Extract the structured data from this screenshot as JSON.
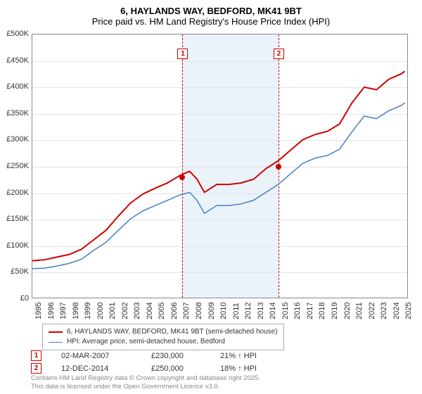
{
  "title": {
    "line1": "6, HAYLANDS WAY, BEDFORD, MK41 9BT",
    "line2": "Price paid vs. HM Land Registry's House Price Index (HPI)"
  },
  "chart": {
    "type": "line",
    "background_color": "#ffffff",
    "grid_color": "#e5e5e5",
    "border_color": "#888888",
    "xlim": [
      1995,
      2025.5
    ],
    "ylim": [
      0,
      500000
    ],
    "y_ticks": [
      0,
      50000,
      100000,
      150000,
      200000,
      250000,
      300000,
      350000,
      400000,
      450000,
      500000
    ],
    "y_tick_labels": [
      "£0",
      "£50K",
      "£100K",
      "£150K",
      "£200K",
      "£250K",
      "£300K",
      "£350K",
      "£400K",
      "£450K",
      "£500K"
    ],
    "x_ticks": [
      1995,
      1996,
      1997,
      1998,
      1999,
      2000,
      2001,
      2002,
      2003,
      2004,
      2005,
      2006,
      2007,
      2008,
      2009,
      2010,
      2011,
      2012,
      2013,
      2014,
      2015,
      2016,
      2017,
      2018,
      2019,
      2020,
      2021,
      2022,
      2023,
      2024,
      2025
    ],
    "shaded_band": {
      "x_from": 2007.17,
      "x_to": 2014.95,
      "color": "#eaf2fa"
    },
    "series": [
      {
        "name": "6, HAYLANDS WAY, BEDFORD, MK41 9BT (semi-detached house)",
        "color": "#cc0000",
        "line_width": 2,
        "x": [
          1995,
          1996,
          1997,
          1998,
          1999,
          2000,
          2001,
          2002,
          2003,
          2004,
          2005,
          2006,
          2007,
          2007.8,
          2008.4,
          2009,
          2010,
          2011,
          2012,
          2013,
          2014,
          2015,
          2016,
          2017,
          2018,
          2019,
          2020,
          2021,
          2022,
          2023,
          2024,
          2025,
          2025.3
        ],
        "y": [
          70000,
          72000,
          77000,
          82000,
          92000,
          110000,
          128000,
          155000,
          180000,
          197000,
          208000,
          218000,
          232000,
          240000,
          225000,
          200000,
          215000,
          215000,
          218000,
          225000,
          245000,
          260000,
          280000,
          300000,
          310000,
          316000,
          330000,
          370000,
          400000,
          395000,
          415000,
          425000,
          430000
        ]
      },
      {
        "name": "HPI: Average price, semi-detached house, Bedford",
        "color": "#4a7fc1",
        "line_width": 1.5,
        "x": [
          1995,
          1996,
          1997,
          1998,
          1999,
          2000,
          2001,
          2002,
          2003,
          2004,
          2005,
          2006,
          2007,
          2007.8,
          2008.4,
          2009,
          2010,
          2011,
          2012,
          2013,
          2014,
          2015,
          2016,
          2017,
          2018,
          2019,
          2020,
          2021,
          2022,
          2023,
          2024,
          2025,
          2025.3
        ],
        "y": [
          55000,
          56000,
          60000,
          65000,
          73000,
          90000,
          105000,
          128000,
          150000,
          165000,
          175000,
          185000,
          195000,
          200000,
          185000,
          160000,
          175000,
          175000,
          178000,
          185000,
          200000,
          215000,
          235000,
          255000,
          265000,
          270000,
          282000,
          315000,
          345000,
          340000,
          355000,
          365000,
          370000
        ]
      }
    ],
    "markers": [
      {
        "label": "1",
        "x": 2007.17,
        "y": 230000,
        "color": "#cc0000",
        "box_y": 68
      },
      {
        "label": "2",
        "x": 2014.95,
        "y": 250000,
        "color": "#cc0000",
        "box_y": 68
      }
    ]
  },
  "legend": {
    "items": [
      {
        "label": "6, HAYLANDS WAY, BEDFORD, MK41 9BT (semi-detached house)",
        "color": "#cc0000",
        "width": 2
      },
      {
        "label": "HPI: Average price, semi-detached house, Bedford",
        "color": "#4a7fc1",
        "width": 1.5
      }
    ]
  },
  "data_rows": [
    {
      "marker": "1",
      "marker_color": "#cc0000",
      "date": "02-MAR-2007",
      "price": "£230,000",
      "hpi": "21% ↑ HPI"
    },
    {
      "marker": "2",
      "marker_color": "#cc0000",
      "date": "12-DEC-2014",
      "price": "£250,000",
      "hpi": "18% ↑ HPI"
    }
  ],
  "footer": {
    "line1": "Contains HM Land Registry data © Crown copyright and database right 2025.",
    "line2": "This data is licensed under the Open Government Licence v3.0."
  }
}
